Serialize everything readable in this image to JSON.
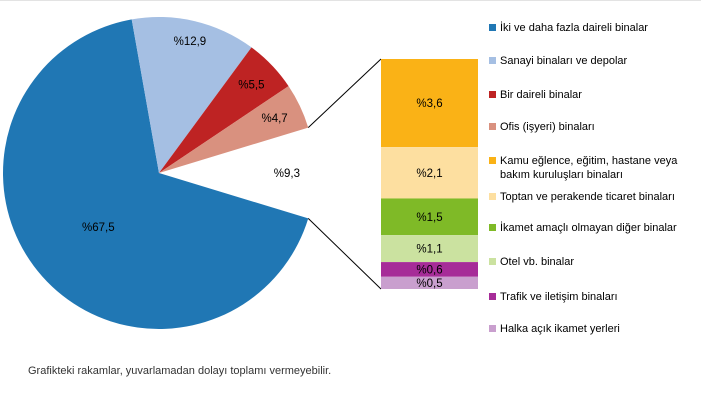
{
  "chart_data": {
    "type": "pie",
    "variant": "bar-of-pie",
    "unit": "percent",
    "grid": false,
    "pie": {
      "categories": [
        "İki ve daha fazla daireli binalar",
        "Sanayi binaları ve depolar",
        "Bir daireli binalar",
        "Ofis (işyeri) binaları"
      ],
      "values": [
        67.5,
        12.9,
        5.5,
        4.7
      ],
      "labels": [
        "%67,5",
        "%12,9",
        "%5,5",
        "%4,7"
      ],
      "colors": [
        "#2077B4",
        "#A5BFE3",
        "#BE2323",
        "#D9917F"
      ],
      "label_colors": [
        "#000000",
        "#000000",
        "#FFFFFF",
        "#000000"
      ]
    },
    "other": {
      "label": "%9,3",
      "value": 9.3
    },
    "bar": {
      "categories": [
        "Kamu eğlence, eğitim, hastane veya bakım kuruluşları binaları",
        "Toptan ve perakende ticaret binaları",
        "İkamet amaçlı olmayan diğer binalar",
        "Otel vb. binalar",
        "Trafik ve iletişim binaları",
        "Halka açık ikamet yerleri"
      ],
      "values": [
        3.6,
        2.1,
        1.5,
        1.1,
        0.6,
        0.5
      ],
      "labels": [
        "%3,6",
        "%2,1",
        "%1,5",
        "%1,1",
        "%0,6",
        "%0,5"
      ],
      "colors": [
        "#FAB216",
        "#FDDFA0",
        "#7FBA27",
        "#CBE2A0",
        "#A62C98",
        "#C99FCE"
      ],
      "label_colors": [
        "#000000",
        "#000000",
        "#000000",
        "#000000",
        "#000000",
        "#000000"
      ]
    },
    "legend": {
      "position": "right",
      "entries": [
        {
          "label": "İki ve daha fazla daireli binalar",
          "color": "#2077B4"
        },
        {
          "label": "Sanayi binaları ve depolar",
          "color": "#A5BFE3"
        },
        {
          "label": "Bir daireli binalar",
          "color": "#BE2323"
        },
        {
          "label": "Ofis (işyeri) binaları",
          "color": "#D9917F"
        },
        {
          "label": "Kamu eğlence, eğitim, hastane veya\nbakım kuruluşları binaları",
          "color": "#FAB216"
        },
        {
          "label": "Toptan ve perakende ticaret binaları",
          "color": "#FDDFA0"
        },
        {
          "label": "İkamet amaçlı olmayan diğer binalar",
          "color": "#7FBA27"
        },
        {
          "label": "Otel vb. binalar",
          "color": "#CBE2A0"
        },
        {
          "label": "Trafik ve iletişim binaları",
          "color": "#A62C98"
        },
        {
          "label": "Halka açık ikamet yerleri",
          "color": "#C99FCE"
        }
      ]
    },
    "footnote": "Grafikteki rakamlar, yuvarlamadan dolayı toplamı vermeyebilir."
  }
}
